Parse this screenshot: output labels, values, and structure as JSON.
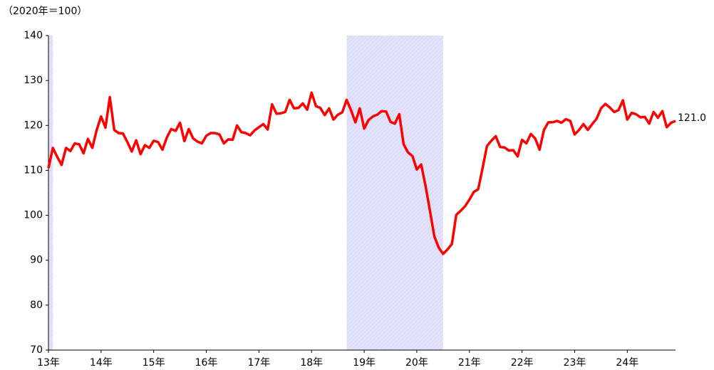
{
  "chart_data": {
    "type": "line",
    "y_label": "（2020年＝100）",
    "categories": [
      "13年",
      null,
      null,
      null,
      null,
      null,
      null,
      null,
      null,
      null,
      null,
      null,
      "14年",
      null,
      null,
      null,
      null,
      null,
      null,
      null,
      null,
      null,
      null,
      null,
      "15年",
      null,
      null,
      null,
      null,
      null,
      null,
      null,
      null,
      null,
      null,
      null,
      "16年",
      null,
      null,
      null,
      null,
      null,
      null,
      null,
      null,
      null,
      null,
      null,
      "17年",
      null,
      null,
      null,
      null,
      null,
      null,
      null,
      null,
      null,
      null,
      null,
      "18年",
      null,
      null,
      null,
      null,
      null,
      null,
      null,
      null,
      null,
      null,
      null,
      "19年",
      null,
      null,
      null,
      null,
      null,
      null,
      null,
      null,
      null,
      null,
      null,
      "20年",
      null,
      null,
      null,
      null,
      null,
      null,
      null,
      null,
      null,
      null,
      null,
      "21年",
      null,
      null,
      null,
      null,
      null,
      null,
      null,
      null,
      null,
      null,
      null,
      "22年",
      null,
      null,
      null,
      null,
      null,
      null,
      null,
      null,
      null,
      null,
      null,
      "23年",
      null,
      null,
      null,
      null,
      null,
      null,
      null,
      null,
      null,
      null,
      null,
      "24年",
      null,
      null,
      null,
      null,
      null,
      null,
      null,
      null,
      null,
      null,
      null
    ],
    "series": [
      {
        "color": "#ff0000",
        "values": [
          110.5,
          115.0,
          113.0,
          111.2,
          115.0,
          114.3,
          116.0,
          115.8,
          113.8,
          117.0,
          115.0,
          119.0,
          122.0,
          119.5,
          126.3,
          119.0,
          118.3,
          118.2,
          116.3,
          114.2,
          116.7,
          113.6,
          115.6,
          115.0,
          116.6,
          116.3,
          114.6,
          117.3,
          119.2,
          118.8,
          120.6,
          116.5,
          119.2,
          117.1,
          116.4,
          116.0,
          117.7,
          118.3,
          118.3,
          118.0,
          116.0,
          116.9,
          116.8,
          120.0,
          118.5,
          118.3,
          117.8,
          118.9,
          119.6,
          120.3,
          119.1,
          124.7,
          122.6,
          122.7,
          123.0,
          125.7,
          123.8,
          123.9,
          124.9,
          123.5,
          127.3,
          124.3,
          123.9,
          122.3,
          123.8,
          121.3,
          122.4,
          122.9,
          125.7,
          123.4,
          120.7,
          123.8,
          119.3,
          121.2,
          122.0,
          122.4,
          123.2,
          123.1,
          120.8,
          120.4,
          122.5,
          115.8,
          114.0,
          113.2,
          110.2,
          111.3,
          106.5,
          101.0,
          95.3,
          92.8,
          91.4,
          92.4,
          93.6,
          100.1,
          101.0,
          102.0,
          103.5,
          105.2,
          105.8,
          110.5,
          115.4,
          116.6,
          117.6,
          115.2,
          115.1,
          114.4,
          114.5,
          113.1,
          116.8,
          116.0,
          118.1,
          117.1,
          114.6,
          119.0,
          120.7,
          120.7,
          121.0,
          120.6,
          121.4,
          121.0,
          118.0,
          119.0,
          120.3,
          119.0,
          120.3,
          121.5,
          123.8,
          124.8,
          124.0,
          123.0,
          123.4,
          125.6,
          121.3,
          122.8,
          122.5,
          121.8,
          121.9,
          120.4,
          123.0,
          121.7,
          123.2,
          119.6,
          120.6,
          121.0
        ],
        "value_labels": [
          null,
          null,
          null,
          null,
          null,
          null,
          null,
          null,
          null,
          null,
          null,
          null,
          null,
          null,
          null,
          null,
          null,
          null,
          null,
          null,
          null,
          null,
          null,
          null,
          null,
          null,
          null,
          null,
          null,
          null,
          null,
          null,
          null,
          null,
          null,
          null,
          null,
          null,
          null,
          null,
          null,
          null,
          null,
          null,
          null,
          null,
          null,
          null,
          null,
          null,
          null,
          null,
          null,
          null,
          null,
          null,
          null,
          null,
          null,
          null,
          null,
          null,
          null,
          null,
          null,
          null,
          null,
          null,
          null,
          null,
          null,
          null,
          null,
          null,
          null,
          null,
          null,
          null,
          null,
          null,
          null,
          null,
          null,
          null,
          null,
          null,
          null,
          null,
          null,
          null,
          null,
          null,
          null,
          null,
          null,
          null,
          null,
          null,
          null,
          null,
          null,
          null,
          null,
          null,
          null,
          null,
          null,
          null,
          null,
          null,
          null,
          null,
          null,
          null,
          null,
          null,
          null,
          null,
          null,
          null,
          null,
          null,
          null,
          null,
          null,
          null,
          null,
          null,
          null,
          null,
          null,
          null,
          null,
          null,
          null,
          null,
          null,
          null,
          null,
          null,
          null,
          null,
          null,
          "121.0"
        ]
      }
    ],
    "shaded_ranges": [
      [
        0,
        1
      ],
      [
        68,
        90
      ]
    ],
    "shade_color": "#e2e2fa",
    "ylim": [
      70,
      140
    ],
    "yticks": [
      70,
      80,
      90,
      100,
      110,
      120,
      130,
      140
    ],
    "grid": false
  }
}
